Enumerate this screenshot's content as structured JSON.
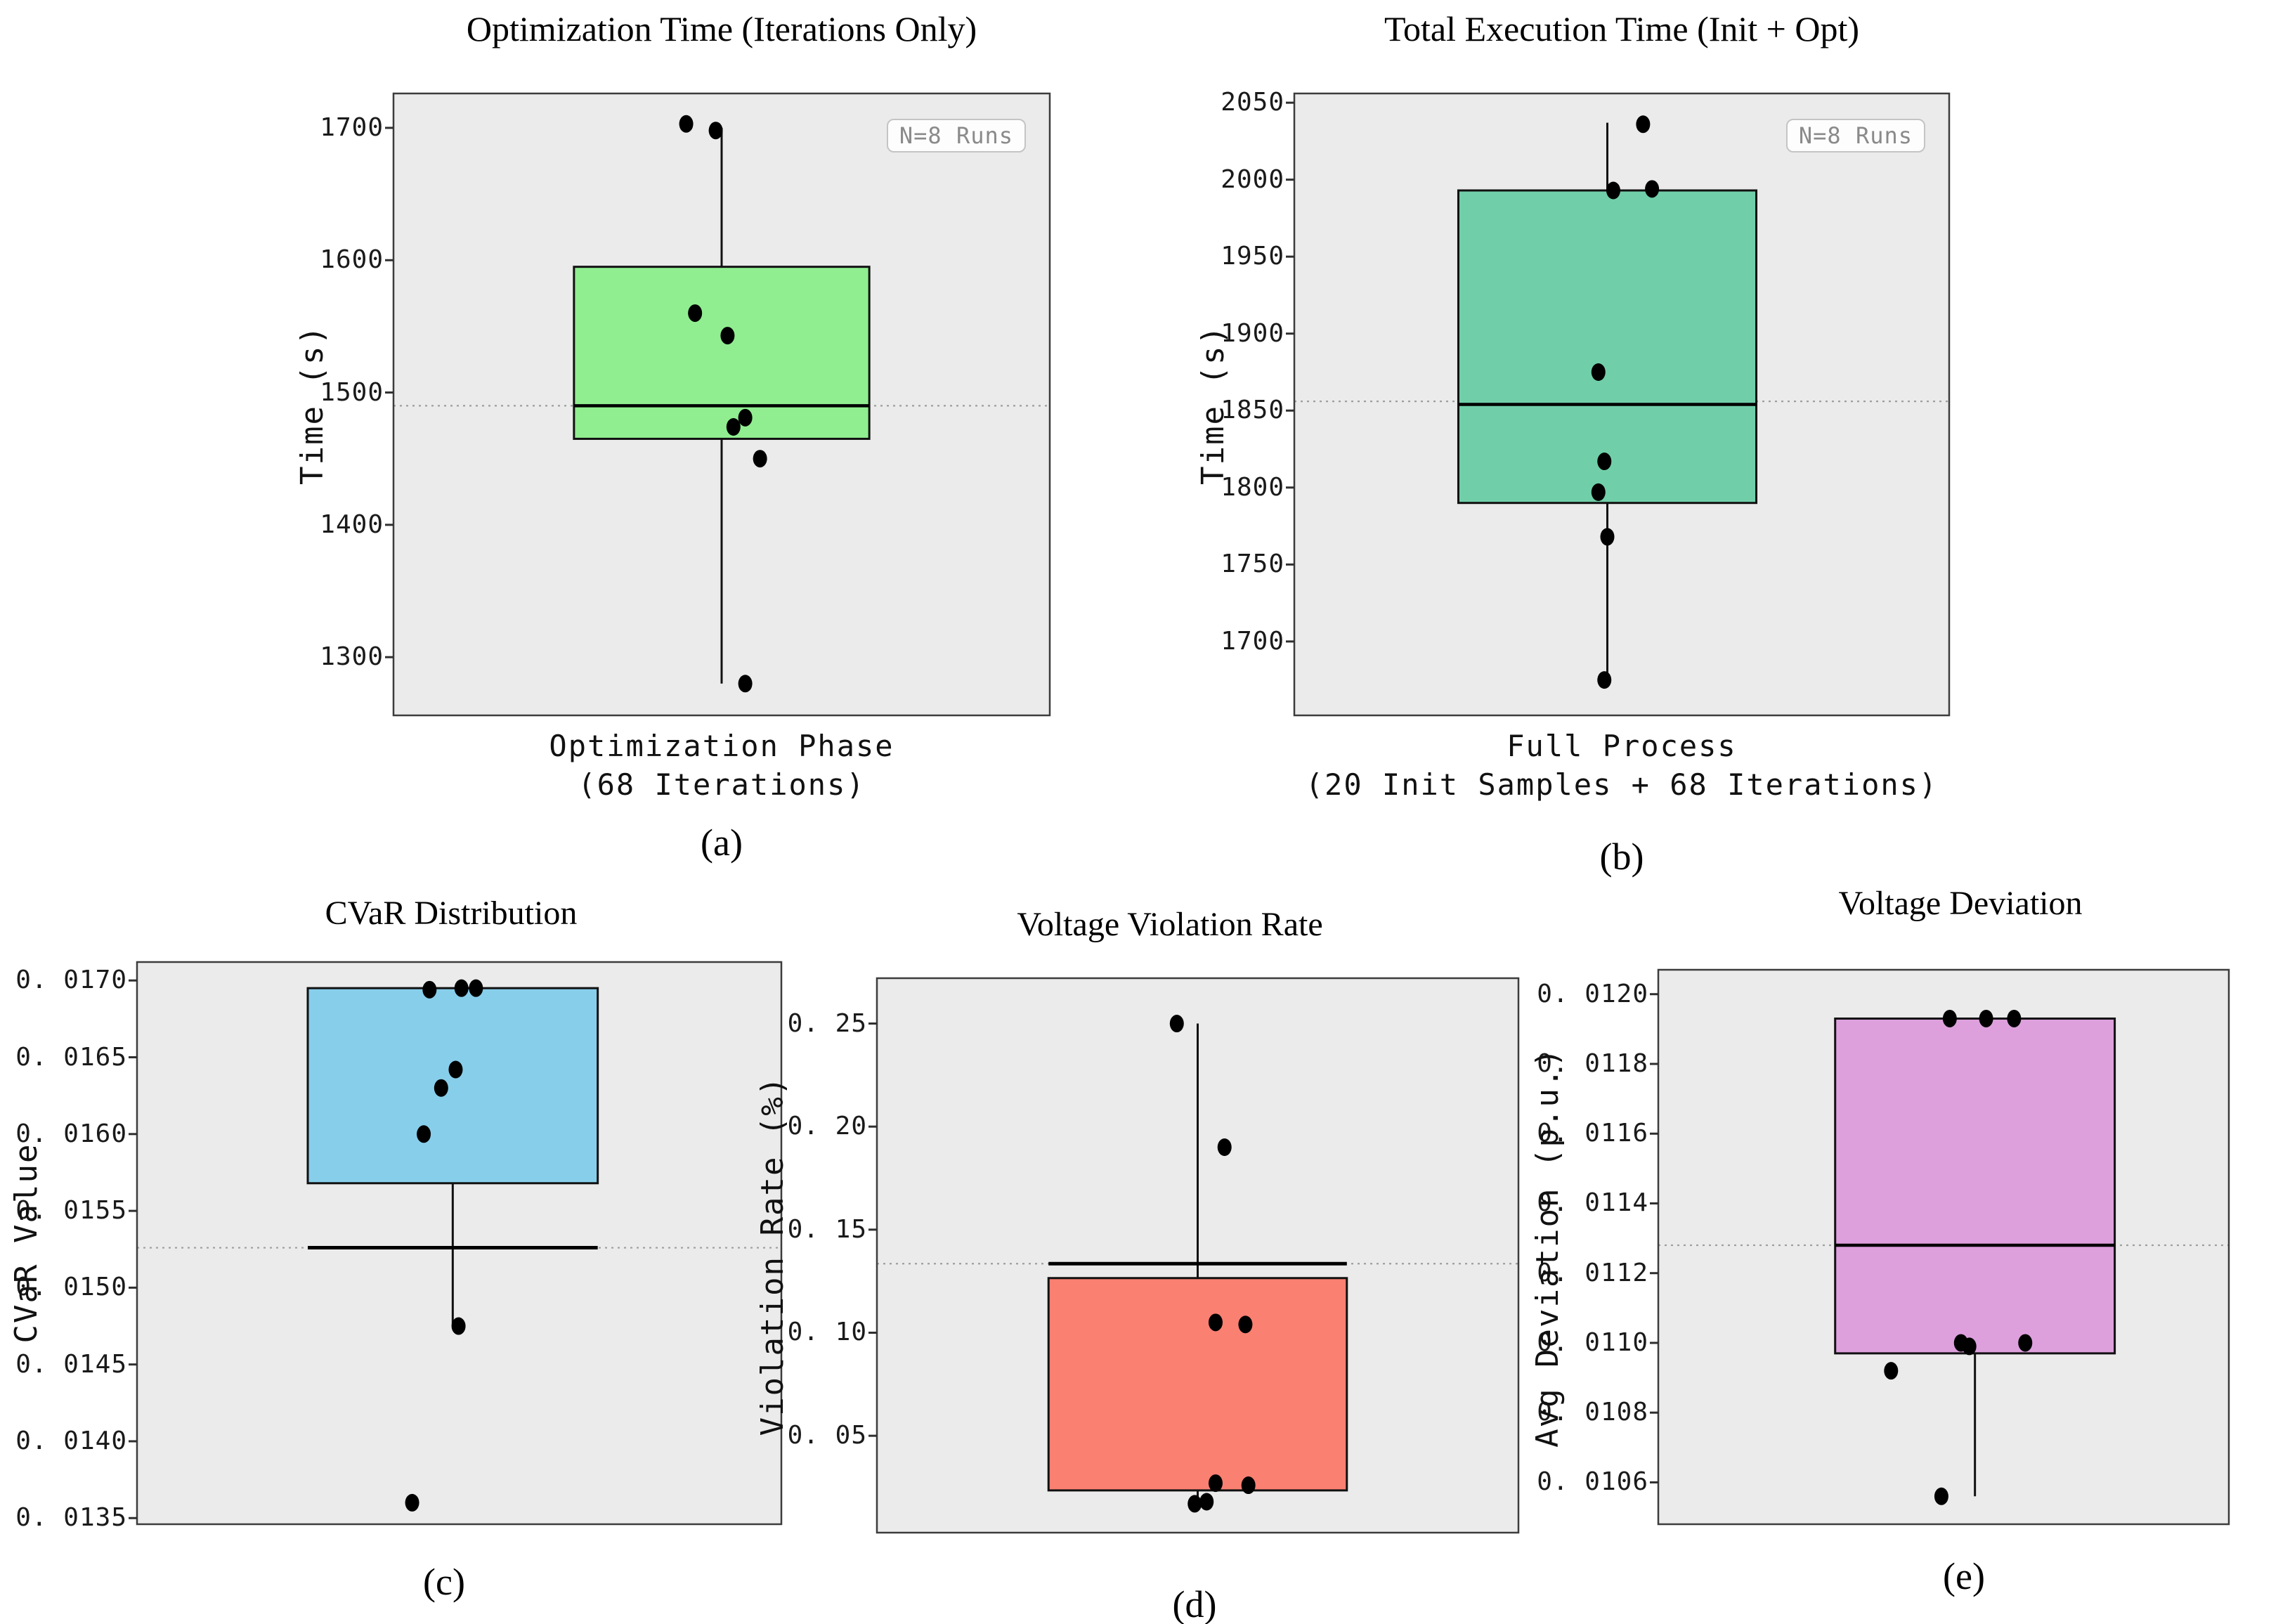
{
  "page": {
    "background": "#ffffff"
  },
  "chart_data": [
    {
      "id": "a",
      "type": "box",
      "title": "Optimization Time (Iterations Only)",
      "ylabel": "Time (s)",
      "xlabel_lines": [
        "Optimization Phase",
        "(68 Iterations)"
      ],
      "caption": "(a)",
      "legend": "N=8 Runs",
      "n_runs": 8,
      "box_color": "#90ee90",
      "ylim": [
        1256,
        1726
      ],
      "yticks": [
        1300,
        1400,
        1500,
        1600,
        1700
      ],
      "tick_decimals": 0,
      "grid": false,
      "legend_position": "top-right",
      "box": {
        "q1": 1465,
        "median": 1490,
        "q3": 1595,
        "whisker_low": 1280,
        "whisker_high": 1700
      },
      "mean_line": 1490,
      "points": [
        [
          1703,
          -0.12
        ],
        [
          1698,
          -0.02
        ],
        [
          1560,
          -0.09
        ],
        [
          1543,
          0.02
        ],
        [
          1481,
          0.08
        ],
        [
          1474,
          0.04
        ],
        [
          1450,
          0.13
        ],
        [
          1280,
          0.08
        ]
      ]
    },
    {
      "id": "b",
      "type": "box",
      "title": "Total Execution Time (Init + Opt)",
      "ylabel": "Time (s)",
      "xlabel_lines": [
        "Full Process",
        "(20 Init Samples + 68 Iterations)"
      ],
      "caption": "(b)",
      "legend": "N=8 Runs",
      "n_runs": 8,
      "box_color": "#70cfa9",
      "ylim": [
        1652,
        2056
      ],
      "yticks": [
        1700,
        1750,
        1800,
        1850,
        1900,
        1950,
        2000,
        2050
      ],
      "tick_decimals": 0,
      "grid": false,
      "legend_position": "top-right",
      "box": {
        "q1": 1790,
        "median": 1854,
        "q3": 1993,
        "whisker_low": 1675,
        "whisker_high": 2037
      },
      "mean_line": 1856,
      "points": [
        [
          2036,
          0.12
        ],
        [
          1994,
          0.15
        ],
        [
          1993,
          0.02
        ],
        [
          1875,
          -0.03
        ],
        [
          1817,
          -0.01
        ],
        [
          1797,
          -0.03
        ],
        [
          1768,
          0.0
        ],
        [
          1675,
          -0.01
        ]
      ]
    },
    {
      "id": "c",
      "type": "box",
      "title": "CVaR Distribution",
      "ylabel": "CVaR Value",
      "xlabel_lines": [],
      "caption": "(c)",
      "legend": null,
      "n_runs": 8,
      "box_color": "#87ceeb",
      "ylim": [
        0.01346,
        0.01712
      ],
      "yticks": [
        0.0135,
        0.014,
        0.0145,
        0.015,
        0.0155,
        0.016,
        0.0165,
        0.017
      ],
      "tick_decimals": 4,
      "grid": false,
      "box": {
        "q1": 0.01568,
        "median": null,
        "q3": 0.01695,
        "whisker_low": 0.01475,
        "whisker_high": null
      },
      "extra_line": 0.01526,
      "mean_line": 0.01526,
      "points": [
        [
          0.01694,
          -0.08
        ],
        [
          0.01695,
          0.03
        ],
        [
          0.01695,
          0.08
        ],
        [
          0.01642,
          0.01
        ],
        [
          0.0163,
          -0.04
        ],
        [
          0.016,
          -0.1
        ],
        [
          0.01475,
          0.02
        ],
        [
          0.0136,
          -0.14
        ]
      ]
    },
    {
      "id": "d",
      "type": "box",
      "title": "Voltage Violation Rate",
      "ylabel": "Violation Rate (%)",
      "xlabel_lines": [],
      "caption": "(d)",
      "legend": null,
      "n_runs": 8,
      "box_color": "#fa8072",
      "ylim": [
        0.003,
        0.272
      ],
      "yticks": [
        0.05,
        0.1,
        0.15,
        0.2,
        0.25
      ],
      "tick_decimals": 2,
      "grid": false,
      "box": {
        "q1": 0.0235,
        "median": null,
        "q3": 0.1265,
        "whisker_low": 0.017,
        "whisker_high": 0.25
      },
      "extra_line": 0.1335,
      "mean_line": 0.1335,
      "points": [
        [
          0.25,
          -0.07
        ],
        [
          0.19,
          0.09
        ],
        [
          0.105,
          0.06
        ],
        [
          0.104,
          0.16
        ],
        [
          0.027,
          0.06
        ],
        [
          0.026,
          0.17
        ],
        [
          0.018,
          0.03
        ],
        [
          0.017,
          -0.01
        ]
      ]
    },
    {
      "id": "e",
      "type": "box",
      "title": "Voltage Deviation",
      "ylabel": "Avg Deviation (p.u.)",
      "xlabel_lines": [],
      "caption": "(e)",
      "legend": null,
      "n_runs": 8,
      "box_color": "#dda0dd",
      "ylim": [
        0.01048,
        0.01207
      ],
      "yticks": [
        0.0106,
        0.0108,
        0.011,
        0.0112,
        0.0114,
        0.0116,
        0.0118,
        0.012
      ],
      "tick_decimals": 4,
      "grid": false,
      "box": {
        "q1": 0.01097,
        "median": 0.01128,
        "q3": 0.01193,
        "whisker_low": 0.01056,
        "whisker_high": null
      },
      "mean_line": 0.01128,
      "points": [
        [
          0.01193,
          -0.09
        ],
        [
          0.01193,
          0.04
        ],
        [
          0.01193,
          0.14
        ],
        [
          0.011,
          -0.05
        ],
        [
          0.01099,
          -0.02
        ],
        [
          0.011,
          0.18
        ],
        [
          0.01092,
          -0.3
        ],
        [
          0.01056,
          -0.12
        ]
      ]
    }
  ]
}
